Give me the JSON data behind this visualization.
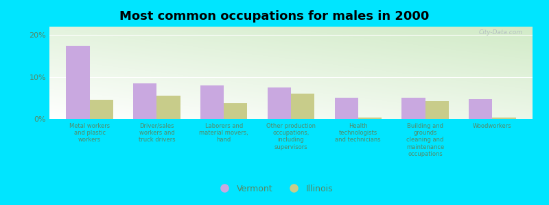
{
  "title": "Most common occupations for males in 2000",
  "categories": [
    "Metal workers\nand plastic\nworkers",
    "Driver/sales\nworkers and\ntruck drivers",
    "Laborers and\nmaterial movers,\nhand",
    "Other production\noccupations,\nincluding\nsupervisors",
    "Health\ntechnologists\nand technicians",
    "Building and\ngrounds\ncleaning and\nmaintenance\noccupations",
    "Woodworkers"
  ],
  "vermont": [
    17.5,
    8.5,
    8.0,
    7.5,
    5.0,
    5.0,
    4.8
  ],
  "illinois": [
    4.5,
    5.5,
    3.8,
    6.0,
    0.4,
    4.2,
    0.3
  ],
  "vermont_color": "#c9a8e0",
  "illinois_color": "#c8cc8a",
  "background_outer": "#00e5ff",
  "title_fontsize": 13,
  "ylabel_ticks": [
    "0%",
    "10%",
    "20%"
  ],
  "ylim": [
    0,
    22
  ],
  "bar_width": 0.35,
  "legend_labels": [
    "Vermont",
    "Illinois"
  ],
  "tick_color": "#558866",
  "watermark": "City-Data.com"
}
